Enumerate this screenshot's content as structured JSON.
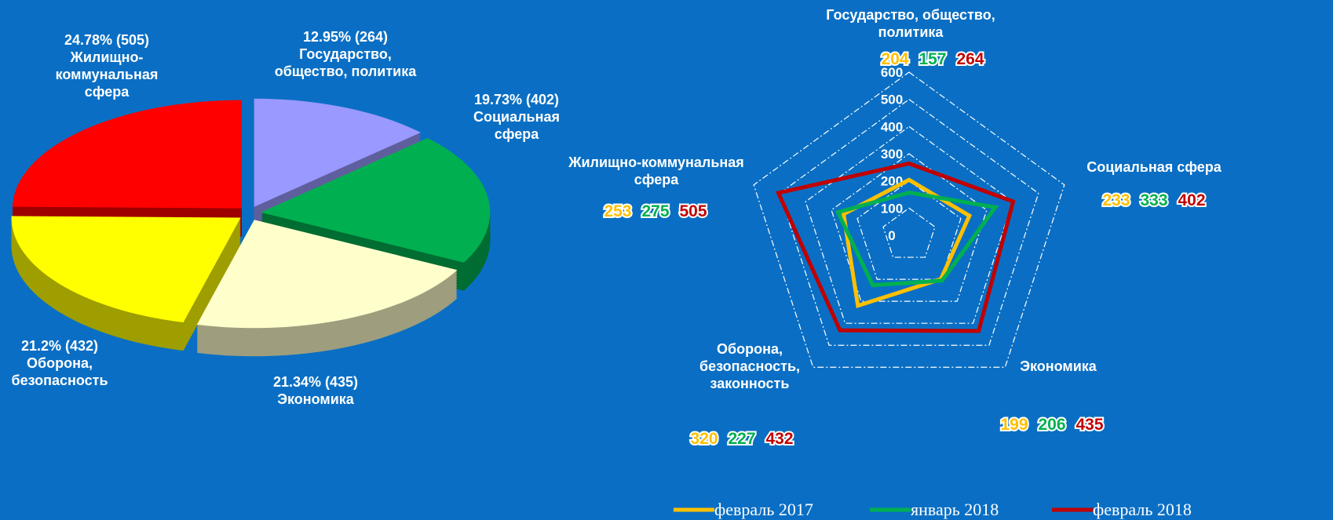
{
  "chart_data": [
    {
      "type": "pie",
      "categories": [
        "Государство, общество, политика",
        "Социальная сфера",
        "Экономика",
        "Оборона, безопасность",
        "Жилищно-коммунальная сфера"
      ],
      "values": [
        264,
        402,
        435,
        432,
        505
      ],
      "value_labels": [
        "12.95% (264)",
        "19.73% (402)",
        "21.34% (435)",
        "21.2% (432)",
        "24.78% (505)"
      ],
      "colors": [
        "#9999ff",
        "#00b050",
        "#ffffcc",
        "#ffff00",
        "#ff0000"
      ]
    },
    {
      "type": "radar",
      "categories": [
        "Государство, общество, политика",
        "Социальная сфера",
        "Экономика",
        "Оборона, безопасность, законность",
        "Жилищно-коммунальная сфера"
      ],
      "series": [
        {
          "name": "февраль 2017",
          "color": "#ffc000",
          "values": [
            204,
            233,
            199,
            320,
            253
          ]
        },
        {
          "name": "январь 2018",
          "color": "#00b050",
          "values": [
            157,
            333,
            206,
            227,
            275
          ]
        },
        {
          "name": "февраль 2018",
          "color": "#c00000",
          "values": [
            264,
            402,
            435,
            432,
            505
          ]
        }
      ],
      "rlim": [
        0,
        600
      ],
      "rticks": [
        0,
        100,
        200,
        300,
        400,
        500,
        600
      ],
      "grid": true,
      "legend": "bottom"
    }
  ]
}
